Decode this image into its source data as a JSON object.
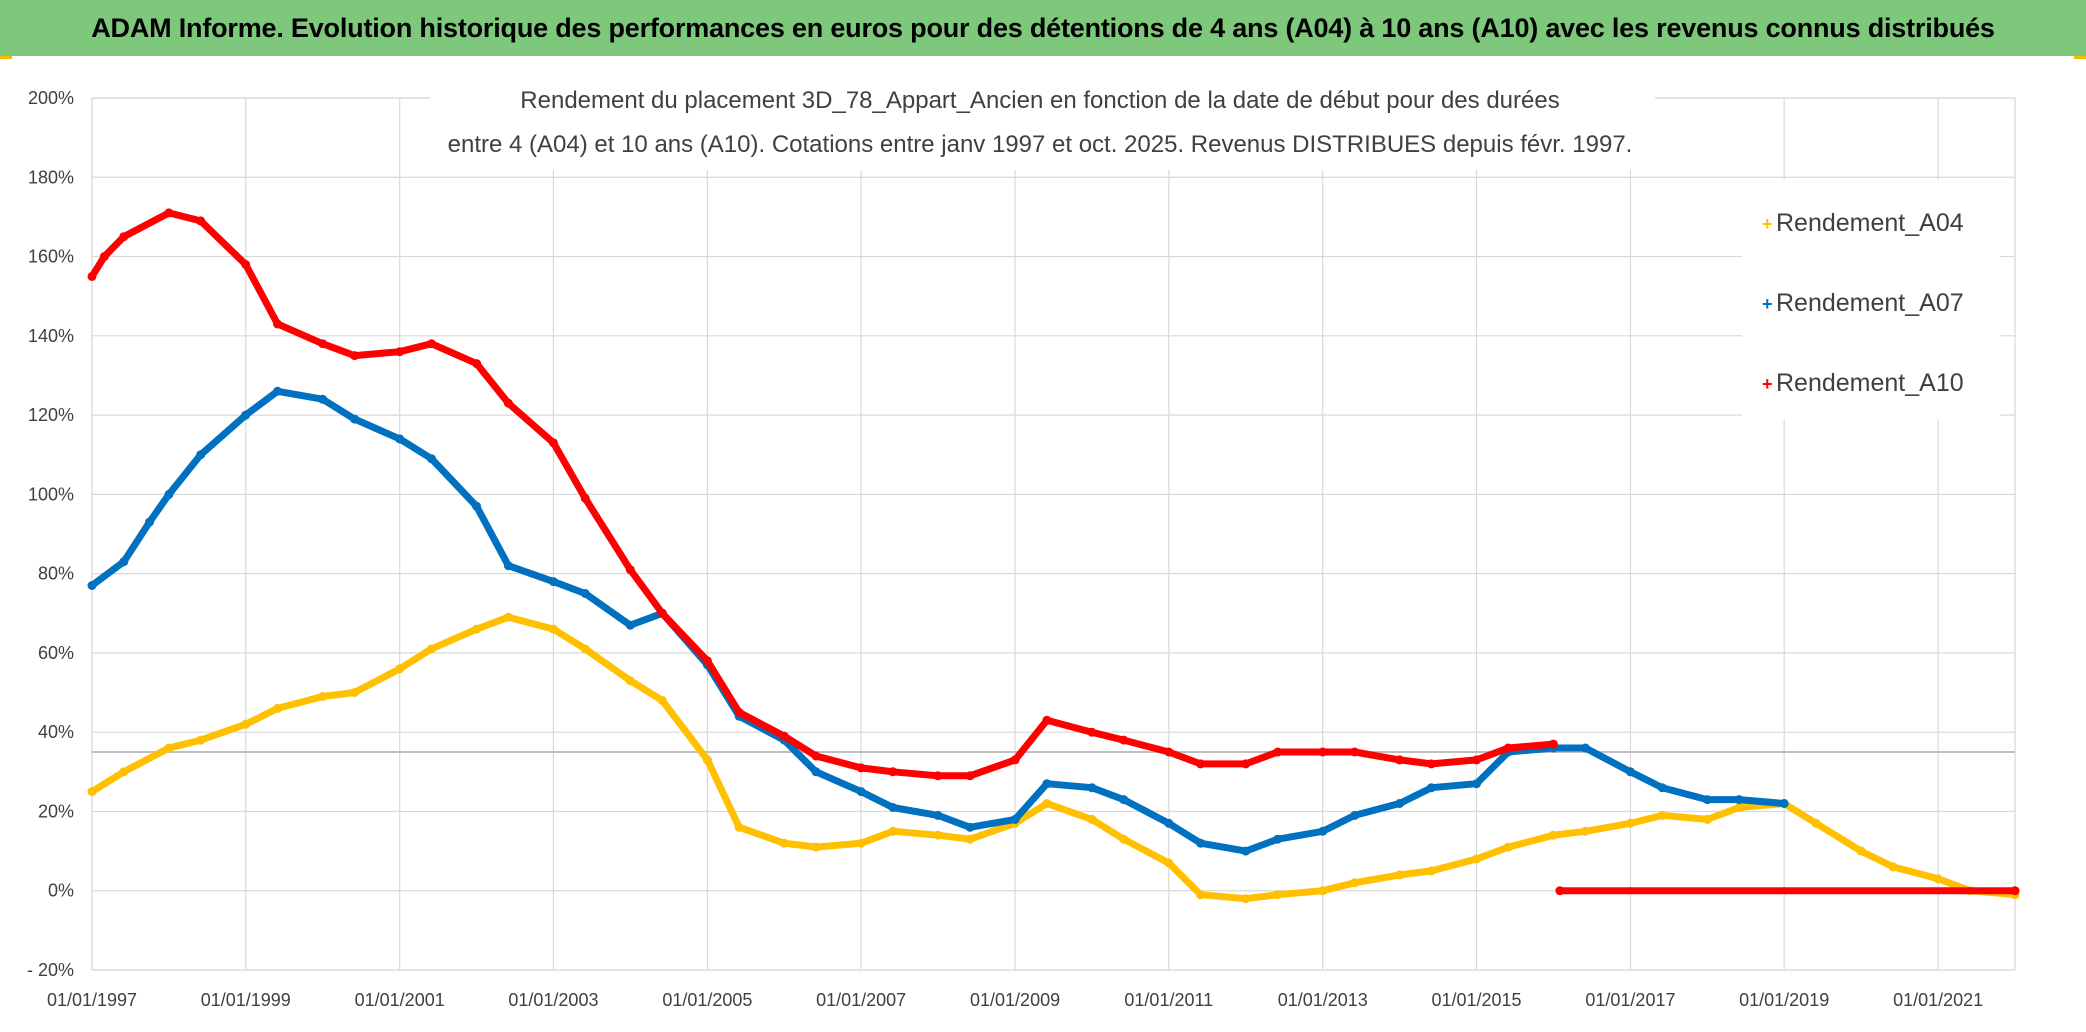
{
  "banner": {
    "title": "ADAM Informe. Evolution historique des performances en euros pour des détentions de 4 ans (A04) à 10 ans (A10) avec les revenus connus distribués"
  },
  "colors": {
    "banner": "#7dc87a",
    "A04": "#ffc000",
    "A07": "#0070c0",
    "A10": "#ff0000",
    "grid": "#d9d9d9",
    "reference_line": "#bfbfbf"
  },
  "chart_data": {
    "type": "line",
    "title_lines": [
      "Rendement du placement 3D_78_Appart_Ancien en fonction de la date de début pour des durées",
      "entre 4 (A04) et 10 ans (A10). Cotations entre janv 1997 et oct. 2025. Revenus DISTRIBUES depuis févr. 1997."
    ],
    "xlabel": "",
    "ylabel": "",
    "x_ticks": [
      "01/01/1997",
      "01/01/1999",
      "01/01/2001",
      "01/01/2003",
      "01/01/2005",
      "01/01/2007",
      "01/01/2009",
      "01/01/2011",
      "01/01/2013",
      "01/01/2015",
      "01/01/2017",
      "01/01/2019",
      "01/01/2021"
    ],
    "xlim": [
      "1997-01-01",
      "2022-01-01"
    ],
    "y_ticks": [
      "- 20%",
      "0%",
      "20%",
      "40%",
      "60%",
      "80%",
      "100%",
      "120%",
      "140%",
      "160%",
      "180%",
      "200%"
    ],
    "ylim": [
      -20,
      200
    ],
    "y_unit": "%",
    "grid": true,
    "legend_position": "right",
    "reference_line": 35,
    "series": [
      {
        "name": "Rendement_A04",
        "color": "#ffc000",
        "points": [
          [
            "1997-01-01",
            25
          ],
          [
            "1997-06-01",
            30
          ],
          [
            "1998-01-01",
            36
          ],
          [
            "1998-06-01",
            38
          ],
          [
            "1999-01-01",
            42
          ],
          [
            "1999-06-01",
            46
          ],
          [
            "2000-01-01",
            49
          ],
          [
            "2000-06-01",
            50
          ],
          [
            "2001-01-01",
            56
          ],
          [
            "2001-06-01",
            61
          ],
          [
            "2002-01-01",
            66
          ],
          [
            "2002-06-01",
            69
          ],
          [
            "2003-01-01",
            66
          ],
          [
            "2003-06-01",
            61
          ],
          [
            "2004-01-01",
            53
          ],
          [
            "2004-06-01",
            48
          ],
          [
            "2005-01-01",
            33
          ],
          [
            "2005-06-01",
            16
          ],
          [
            "2006-01-01",
            12
          ],
          [
            "2006-06-01",
            11
          ],
          [
            "2007-01-01",
            12
          ],
          [
            "2007-06-01",
            15
          ],
          [
            "2008-01-01",
            14
          ],
          [
            "2008-06-01",
            13
          ],
          [
            "2009-01-01",
            17
          ],
          [
            "2009-06-01",
            22
          ],
          [
            "2010-01-01",
            18
          ],
          [
            "2010-06-01",
            13
          ],
          [
            "2011-01-01",
            7
          ],
          [
            "2011-06-01",
            -1
          ],
          [
            "2012-01-01",
            -2
          ],
          [
            "2012-06-01",
            -1
          ],
          [
            "2013-01-01",
            0
          ],
          [
            "2013-06-01",
            2
          ],
          [
            "2014-01-01",
            4
          ],
          [
            "2014-06-01",
            5
          ],
          [
            "2015-01-01",
            8
          ],
          [
            "2015-06-01",
            11
          ],
          [
            "2016-01-01",
            14
          ],
          [
            "2016-06-01",
            15
          ],
          [
            "2017-01-01",
            17
          ],
          [
            "2017-06-01",
            19
          ],
          [
            "2018-01-01",
            18
          ],
          [
            "2018-06-01",
            21
          ],
          [
            "2019-01-01",
            22
          ],
          [
            "2019-06-01",
            17
          ],
          [
            "2020-01-01",
            10
          ],
          [
            "2020-06-01",
            6
          ],
          [
            "2021-01-01",
            3
          ],
          [
            "2021-06-01",
            0
          ],
          [
            "2022-01-01",
            -1
          ]
        ]
      },
      {
        "name": "Rendement_A07",
        "color": "#0070c0",
        "points": [
          [
            "1997-01-01",
            77
          ],
          [
            "1997-06-01",
            83
          ],
          [
            "1997-10-01",
            93
          ],
          [
            "1998-01-01",
            100
          ],
          [
            "1998-06-01",
            110
          ],
          [
            "1999-01-01",
            120
          ],
          [
            "1999-06-01",
            126
          ],
          [
            "2000-01-01",
            124
          ],
          [
            "2000-06-01",
            119
          ],
          [
            "2001-01-01",
            114
          ],
          [
            "2001-06-01",
            109
          ],
          [
            "2002-01-01",
            97
          ],
          [
            "2002-06-01",
            82
          ],
          [
            "2003-01-01",
            78
          ],
          [
            "2003-06-01",
            75
          ],
          [
            "2004-01-01",
            67
          ],
          [
            "2004-06-01",
            70
          ],
          [
            "2005-01-01",
            57
          ],
          [
            "2005-06-01",
            44
          ],
          [
            "2006-01-01",
            38
          ],
          [
            "2006-06-01",
            30
          ],
          [
            "2007-01-01",
            25
          ],
          [
            "2007-06-01",
            21
          ],
          [
            "2008-01-01",
            19
          ],
          [
            "2008-06-01",
            16
          ],
          [
            "2009-01-01",
            18
          ],
          [
            "2009-06-01",
            27
          ],
          [
            "2010-01-01",
            26
          ],
          [
            "2010-06-01",
            23
          ],
          [
            "2011-01-01",
            17
          ],
          [
            "2011-06-01",
            12
          ],
          [
            "2012-01-01",
            10
          ],
          [
            "2012-06-01",
            13
          ],
          [
            "2013-01-01",
            15
          ],
          [
            "2013-06-01",
            19
          ],
          [
            "2014-01-01",
            22
          ],
          [
            "2014-06-01",
            26
          ],
          [
            "2015-01-01",
            27
          ],
          [
            "2015-06-01",
            35
          ],
          [
            "2016-01-01",
            36
          ],
          [
            "2016-06-01",
            36
          ],
          [
            "2017-01-01",
            30
          ],
          [
            "2017-06-01",
            26
          ],
          [
            "2018-01-01",
            23
          ],
          [
            "2018-06-01",
            23
          ],
          [
            "2019-01-01",
            22
          ]
        ]
      },
      {
        "name": "Rendement_A10",
        "color": "#ff0000",
        "points": [
          [
            "1997-01-01",
            155
          ],
          [
            "1997-03-01",
            160
          ],
          [
            "1997-06-01",
            165
          ],
          [
            "1998-01-01",
            171
          ],
          [
            "1998-06-01",
            169
          ],
          [
            "1999-01-01",
            158
          ],
          [
            "1999-06-01",
            143
          ],
          [
            "2000-01-01",
            138
          ],
          [
            "2000-06-01",
            135
          ],
          [
            "2001-01-01",
            136
          ],
          [
            "2001-06-01",
            138
          ],
          [
            "2002-01-01",
            133
          ],
          [
            "2002-06-01",
            123
          ],
          [
            "2003-01-01",
            113
          ],
          [
            "2003-06-01",
            99
          ],
          [
            "2004-01-01",
            81
          ],
          [
            "2004-06-01",
            70
          ],
          [
            "2005-01-01",
            58
          ],
          [
            "2005-06-01",
            45
          ],
          [
            "2006-01-01",
            39
          ],
          [
            "2006-06-01",
            34
          ],
          [
            "2007-01-01",
            31
          ],
          [
            "2007-06-01",
            30
          ],
          [
            "2008-01-01",
            29
          ],
          [
            "2008-06-01",
            29
          ],
          [
            "2009-01-01",
            33
          ],
          [
            "2009-06-01",
            43
          ],
          [
            "2010-01-01",
            40
          ],
          [
            "2010-06-01",
            38
          ],
          [
            "2011-01-01",
            35
          ],
          [
            "2011-06-01",
            32
          ],
          [
            "2012-01-01",
            32
          ],
          [
            "2012-06-01",
            35
          ],
          [
            "2013-01-01",
            35
          ],
          [
            "2013-06-01",
            35
          ],
          [
            "2014-01-01",
            33
          ],
          [
            "2014-06-01",
            32
          ],
          [
            "2015-01-01",
            33
          ],
          [
            "2015-06-01",
            36
          ],
          [
            "2016-01-01",
            37
          ],
          [
            "2016-02-01",
            0
          ],
          [
            "2022-01-01",
            0
          ]
        ]
      }
    ]
  }
}
